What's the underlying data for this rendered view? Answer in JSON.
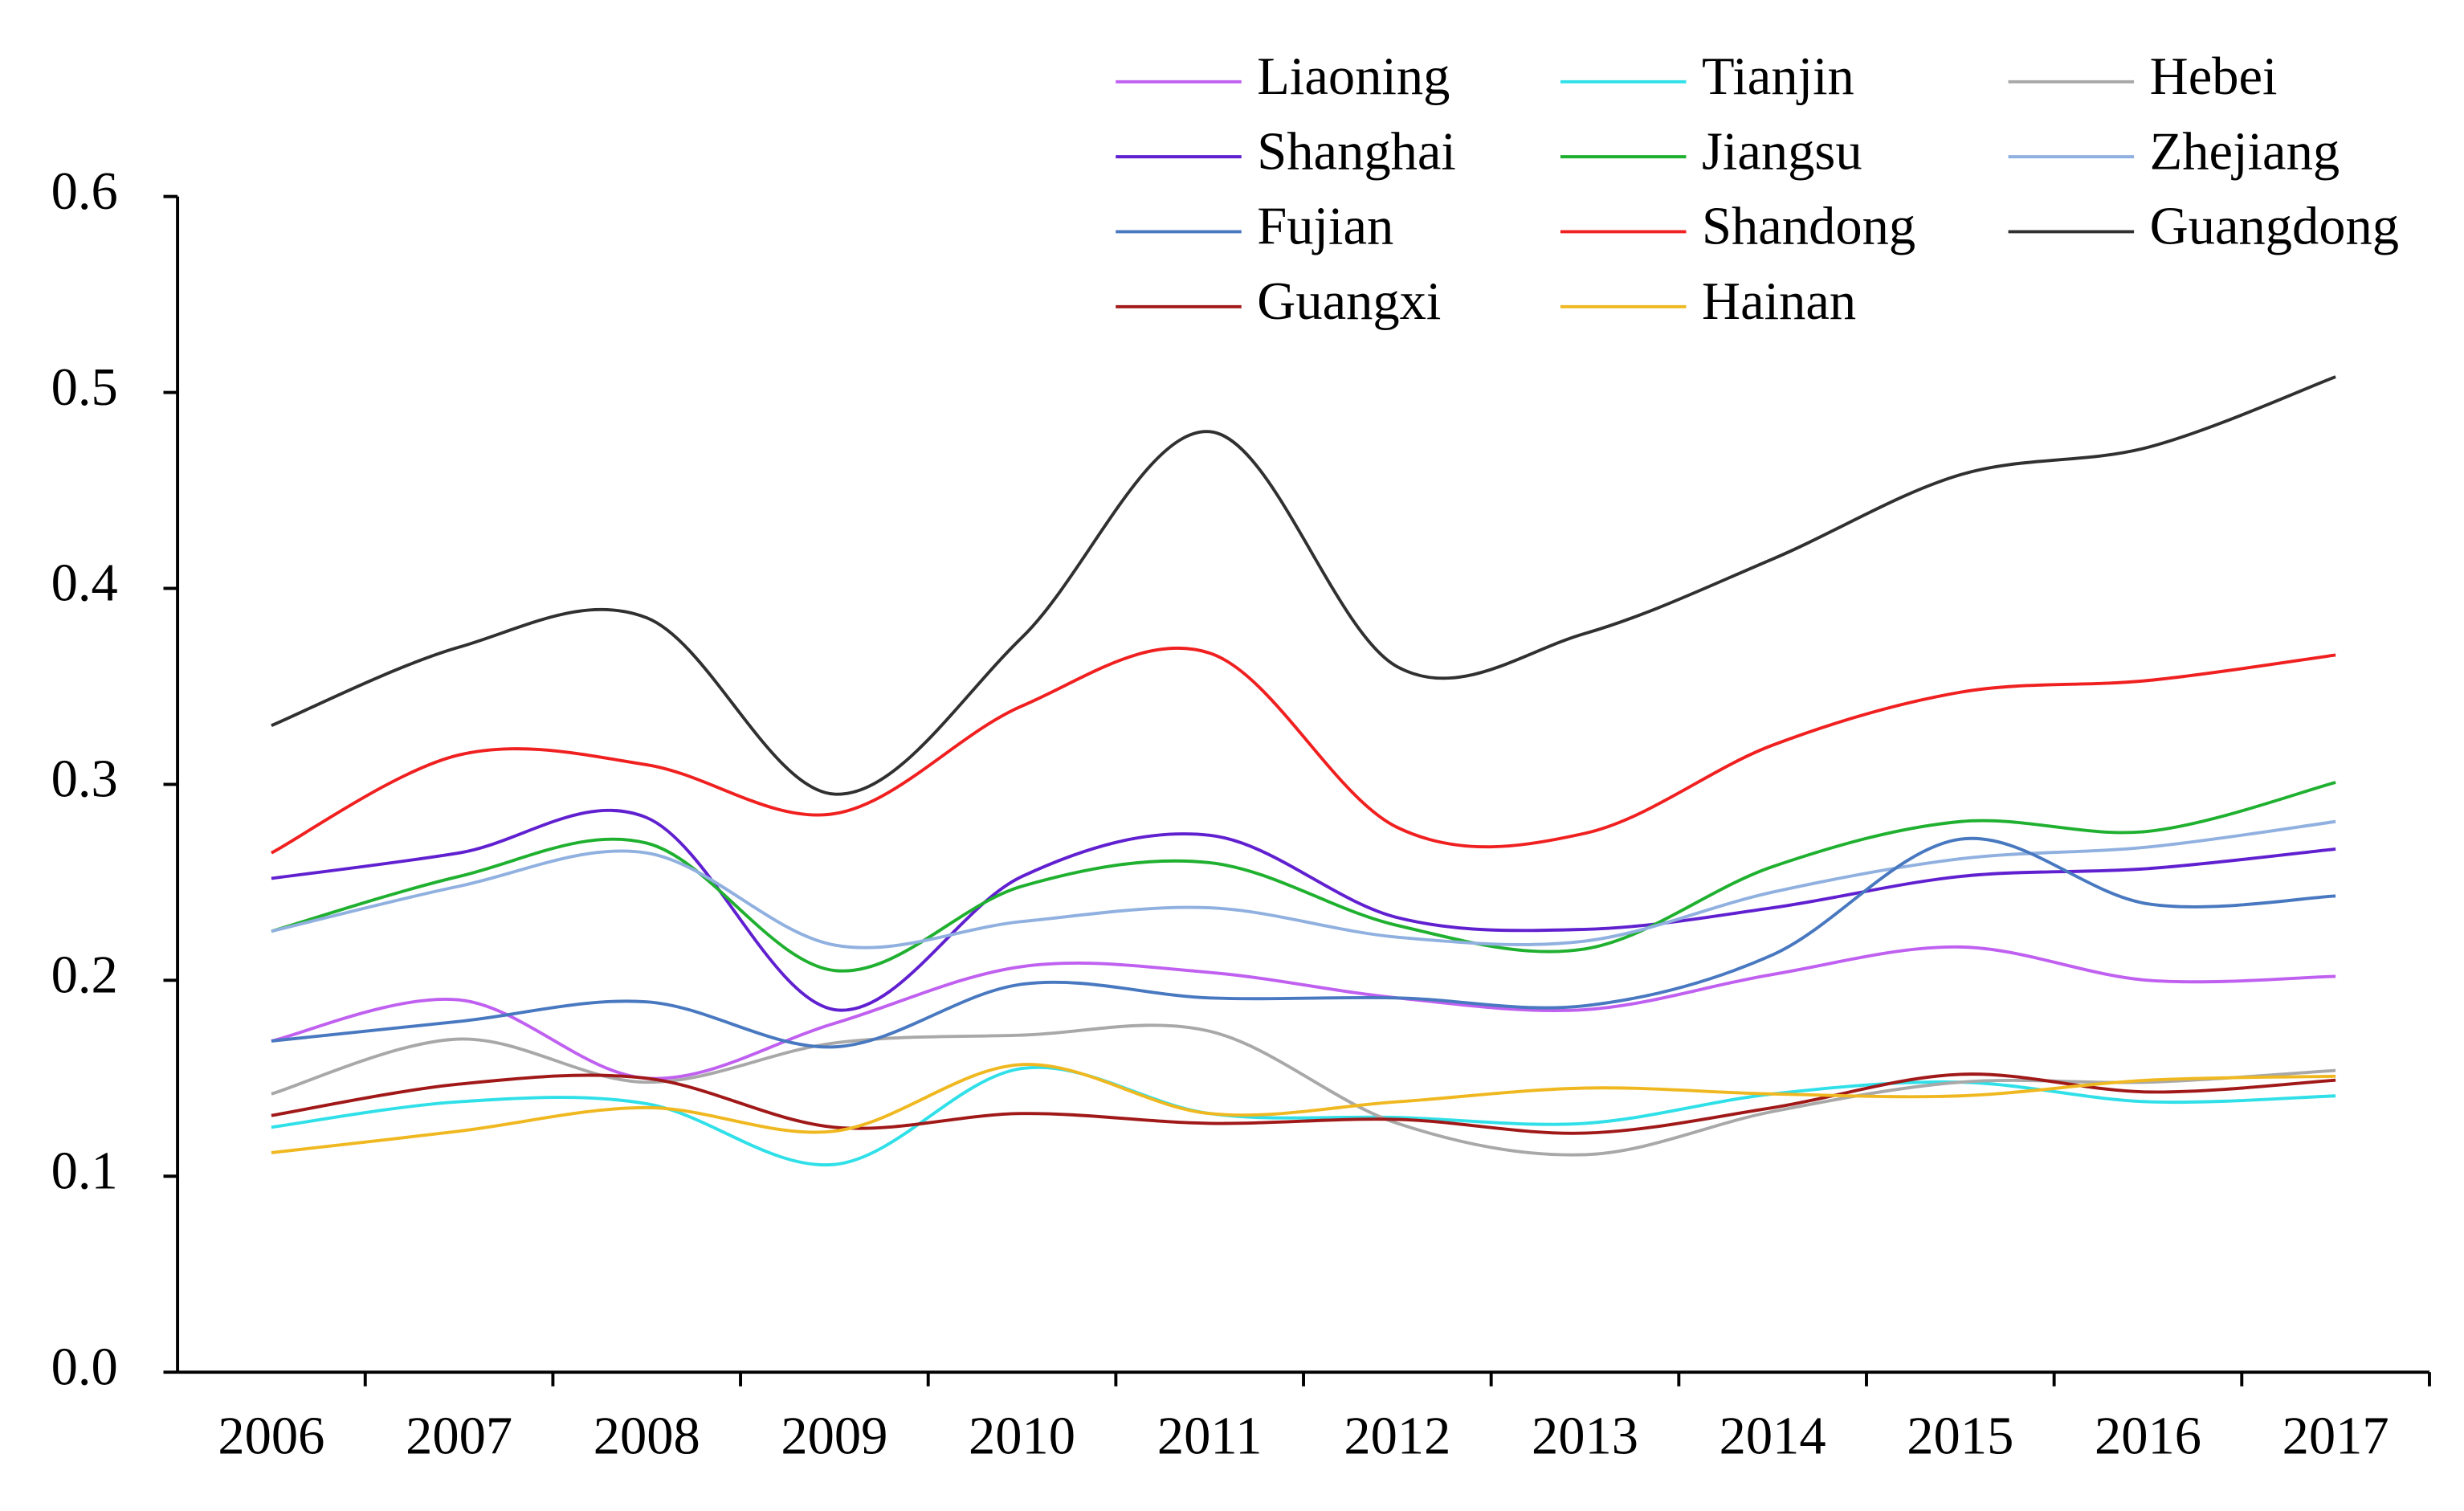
{
  "chart_data": {
    "type": "line",
    "smooth": true,
    "categories": [
      "2006",
      "2007",
      "2008",
      "2009",
      "2010",
      "2011",
      "2012",
      "2013",
      "2014",
      "2015",
      "2016",
      "2017"
    ],
    "ylim": [
      0,
      0.6
    ],
    "yticks": [
      {
        "value": 0,
        "label": "0.0"
      },
      0.1,
      0.2,
      0.3,
      0.4,
      0.5,
      0.6
    ],
    "legend": "top-right",
    "legend_columns": 3,
    "series": [
      {
        "name": "Liaoning",
        "color": "#c060f0",
        "values": [
          0.169,
          0.19,
          0.15,
          0.178,
          0.207,
          0.204,
          0.191,
          0.185,
          0.203,
          0.217,
          0.2,
          0.202
        ]
      },
      {
        "name": "Tianjin",
        "color": "#30e0e8",
        "values": [
          0.125,
          0.138,
          0.137,
          0.106,
          0.155,
          0.132,
          0.13,
          0.127,
          0.142,
          0.148,
          0.138,
          0.141
        ]
      },
      {
        "name": "Hebei",
        "color": "#a8a8a8",
        "values": [
          0.142,
          0.17,
          0.148,
          0.168,
          0.172,
          0.174,
          0.127,
          0.111,
          0.133,
          0.148,
          0.148,
          0.154
        ]
      },
      {
        "name": "Shanghai",
        "color": "#6020d0",
        "values": [
          0.252,
          0.265,
          0.283,
          0.185,
          0.253,
          0.274,
          0.232,
          0.226,
          0.237,
          0.253,
          0.257,
          0.267
        ]
      },
      {
        "name": "Jiangsu",
        "color": "#20b030",
        "values": [
          0.225,
          0.253,
          0.27,
          0.205,
          0.248,
          0.26,
          0.228,
          0.216,
          0.258,
          0.281,
          0.276,
          0.301
        ]
      },
      {
        "name": "Zhejiang",
        "color": "#90b0e0",
        "values": [
          0.225,
          0.248,
          0.265,
          0.218,
          0.23,
          0.237,
          0.222,
          0.22,
          0.245,
          0.262,
          0.268,
          0.281
        ]
      },
      {
        "name": "Fujian",
        "color": "#4878c0",
        "values": [
          0.169,
          0.179,
          0.189,
          0.166,
          0.198,
          0.191,
          0.191,
          0.187,
          0.213,
          0.272,
          0.239,
          0.243
        ]
      },
      {
        "name": "Shandong",
        "color": "#f02020",
        "values": [
          0.265,
          0.315,
          0.31,
          0.285,
          0.34,
          0.367,
          0.278,
          0.275,
          0.32,
          0.347,
          0.353,
          0.366
        ]
      },
      {
        "name": "Guangdong",
        "color": "#303030",
        "values": [
          0.33,
          0.37,
          0.385,
          0.295,
          0.375,
          0.48,
          0.36,
          0.377,
          0.415,
          0.458,
          0.472,
          0.508
        ]
      },
      {
        "name": "Guangxi",
        "color": "#a01818",
        "values": [
          0.131,
          0.147,
          0.15,
          0.125,
          0.132,
          0.127,
          0.129,
          0.122,
          0.135,
          0.152,
          0.143,
          0.149
        ]
      },
      {
        "name": "Hainan",
        "color": "#f0b820",
        "values": [
          0.112,
          0.123,
          0.135,
          0.123,
          0.157,
          0.132,
          0.138,
          0.145,
          0.142,
          0.141,
          0.149,
          0.151
        ]
      }
    ]
  }
}
